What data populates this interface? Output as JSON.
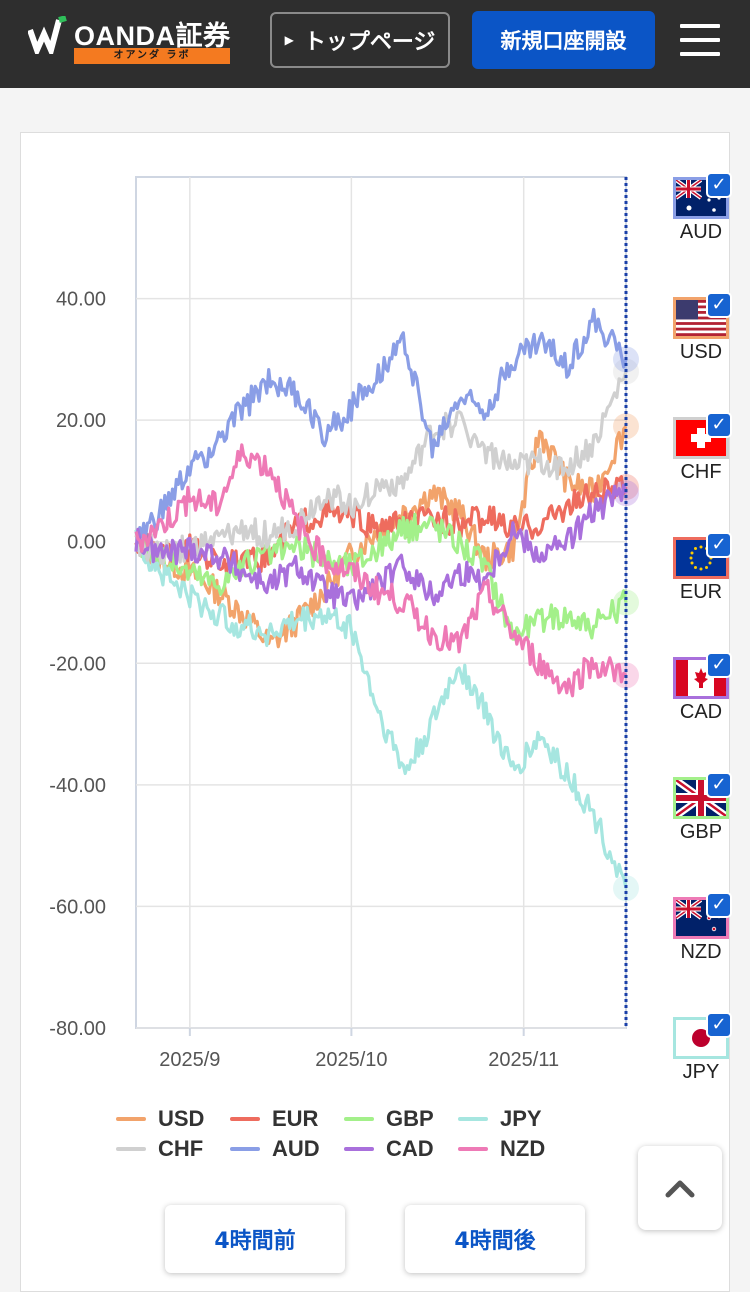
{
  "header": {
    "logo_text": "OANDA証券",
    "logo_sub": "オアンダ ラボ",
    "top_page_label": "トップページ",
    "open_account_label": "新規口座開設"
  },
  "currencies": [
    {
      "code": "AUD",
      "color": "#8a9ee6"
    },
    {
      "code": "USD",
      "color": "#f2a36b"
    },
    {
      "code": "CHF",
      "color": "#d0d0d0"
    },
    {
      "code": "EUR",
      "color": "#ee6c5e"
    },
    {
      "code": "CAD",
      "color": "#a970dc"
    },
    {
      "code": "GBP",
      "color": "#a3f08a"
    },
    {
      "code": "NZD",
      "color": "#ee7ab6"
    },
    {
      "code": "JPY",
      "color": "#a6e6e0"
    }
  ],
  "chart_data": {
    "type": "line",
    "title": "",
    "xlabel": "",
    "ylabel": "",
    "ylim": [
      -80,
      60
    ],
    "y_ticks": [
      "40.00",
      "20.00",
      "0.00",
      "-20.00",
      "-40.00",
      "-60.00",
      "-80.00"
    ],
    "y_tick_values": [
      40,
      20,
      0,
      -20,
      -40,
      -60,
      -80
    ],
    "x_ticks": [
      "2025/9",
      "2025/10",
      "2025/11"
    ],
    "x_tick_days": [
      8,
      38,
      70
    ],
    "x_range_days": [
      -2,
      89
    ],
    "grid": true,
    "series": [
      {
        "name": "USD",
        "color": "#f2a36b",
        "x": [
          -2,
          3,
          8,
          13,
          18,
          23,
          28,
          33,
          38,
          43,
          48,
          53,
          58,
          63,
          68,
          73,
          78,
          83,
          89
        ],
        "y": [
          0,
          -3,
          -5,
          -8,
          -12,
          -17,
          -13,
          -8,
          -2,
          2,
          5,
          8,
          5,
          -3,
          -1,
          18,
          10,
          8,
          19
        ]
      },
      {
        "name": "EUR",
        "color": "#ee6c5e",
        "x": [
          -2,
          3,
          8,
          13,
          18,
          23,
          28,
          33,
          38,
          43,
          48,
          53,
          58,
          63,
          68,
          73,
          78,
          83,
          89
        ],
        "y": [
          0,
          -2,
          -1,
          -3,
          -4,
          -2,
          3,
          5,
          4,
          2,
          3,
          4,
          3,
          4,
          2,
          3,
          6,
          8,
          9
        ]
      },
      {
        "name": "GBP",
        "color": "#a3f08a",
        "x": [
          -2,
          3,
          8,
          13,
          18,
          23,
          28,
          33,
          38,
          43,
          48,
          53,
          58,
          63,
          68,
          73,
          78,
          83,
          89
        ],
        "y": [
          0,
          -3,
          -5,
          -7,
          -4,
          -2,
          -1,
          -3,
          -4,
          -1,
          2,
          3,
          0,
          -4,
          -15,
          -13,
          -12,
          -14,
          -10
        ]
      },
      {
        "name": "JPY",
        "color": "#a6e6e0",
        "x": [
          -2,
          3,
          8,
          13,
          18,
          23,
          28,
          33,
          38,
          43,
          48,
          53,
          58,
          63,
          68,
          73,
          78,
          83,
          89
        ],
        "y": [
          0,
          -5,
          -9,
          -12,
          -14,
          -15,
          -13,
          -12,
          -14,
          -28,
          -38,
          -30,
          -20,
          -28,
          -38,
          -32,
          -38,
          -45,
          -57
        ]
      },
      {
        "name": "CHF",
        "color": "#d0d0d0",
        "x": [
          -2,
          3,
          8,
          13,
          18,
          23,
          28,
          33,
          38,
          43,
          48,
          53,
          58,
          63,
          68,
          73,
          78,
          83,
          89
        ],
        "y": [
          0,
          -2,
          -1,
          0,
          2,
          1,
          3,
          8,
          6,
          9,
          10,
          18,
          20,
          15,
          12,
          13,
          12,
          16,
          28
        ]
      },
      {
        "name": "AUD",
        "color": "#8a9ee6",
        "x": [
          -2,
          3,
          8,
          13,
          18,
          23,
          28,
          33,
          38,
          43,
          48,
          53,
          58,
          63,
          68,
          73,
          78,
          83,
          89
        ],
        "y": [
          0,
          5,
          12,
          16,
          22,
          27,
          24,
          18,
          22,
          28,
          33,
          15,
          24,
          22,
          30,
          33,
          29,
          36,
          30
        ]
      },
      {
        "name": "CAD",
        "color": "#a970dc",
        "x": [
          -2,
          3,
          8,
          13,
          18,
          23,
          28,
          33,
          38,
          43,
          48,
          53,
          58,
          63,
          68,
          73,
          78,
          83,
          89
        ],
        "y": [
          0,
          -2,
          -1,
          -2,
          -5,
          -7,
          -4,
          -8,
          -10,
          -7,
          -4,
          -9,
          -5,
          -6,
          2,
          -2,
          0,
          5,
          8
        ]
      },
      {
        "name": "NZD",
        "color": "#ee7ab6",
        "x": [
          -2,
          3,
          8,
          13,
          18,
          23,
          28,
          33,
          38,
          43,
          48,
          53,
          58,
          63,
          68,
          73,
          78,
          83,
          89
        ],
        "y": [
          0,
          3,
          7,
          6,
          15,
          12,
          3,
          -3,
          -5,
          -8,
          -10,
          -15,
          -17,
          -8,
          -15,
          -20,
          -24,
          -20,
          -22
        ]
      }
    ]
  },
  "legend": [
    "USD",
    "EUR",
    "GBP",
    "JPY",
    "CHF",
    "AUD",
    "CAD",
    "NZD"
  ],
  "nav": {
    "prev_label": "4時間前",
    "next_label": "4時間後"
  }
}
